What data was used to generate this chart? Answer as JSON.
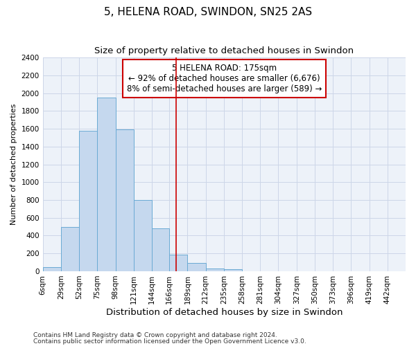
{
  "title": "5, HELENA ROAD, SWINDON, SN25 2AS",
  "subtitle": "Size of property relative to detached houses in Swindon",
  "xlabel": "Distribution of detached houses by size in Swindon",
  "ylabel": "Number of detached properties",
  "footnote1": "Contains HM Land Registry data © Crown copyright and database right 2024.",
  "footnote2": "Contains public sector information licensed under the Open Government Licence v3.0.",
  "annotation_line1": "5 HELENA ROAD: 175sqm",
  "annotation_line2": "← 92% of detached houses are smaller (6,676)",
  "annotation_line3": "8% of semi-detached houses are larger (589) →",
  "subject_value": 175,
  "bar_edges": [
    6,
    29,
    52,
    75,
    98,
    121,
    144,
    166,
    189,
    212,
    235,
    258,
    281,
    304,
    327,
    350,
    373,
    396,
    419,
    442,
    465
  ],
  "bar_heights": [
    50,
    500,
    1580,
    1950,
    1590,
    800,
    480,
    190,
    90,
    30,
    20,
    0,
    0,
    0,
    0,
    0,
    0,
    0,
    0,
    0
  ],
  "bar_color": "#c5d8ee",
  "bar_edge_color": "#6aaad4",
  "vline_color": "#cc0000",
  "vline_x": 175,
  "annotation_box_color": "#cc0000",
  "ylim": [
    0,
    2400
  ],
  "yticks": [
    0,
    200,
    400,
    600,
    800,
    1000,
    1200,
    1400,
    1600,
    1800,
    2000,
    2200,
    2400
  ],
  "grid_color": "#ccd6e8",
  "background_color": "#edf2f9",
  "title_fontsize": 11,
  "subtitle_fontsize": 9.5,
  "xlabel_fontsize": 9.5,
  "ylabel_fontsize": 8,
  "tick_fontsize": 7.5,
  "annotation_fontsize": 8.5,
  "footnote_fontsize": 6.5
}
